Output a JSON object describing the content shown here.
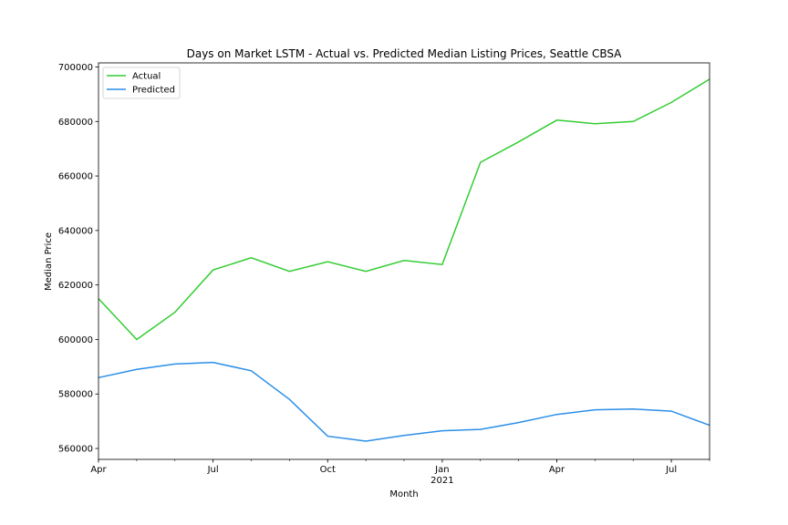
{
  "chart_data": {
    "type": "line",
    "title": "Days on Market LSTM - Actual vs. Predicted Median Listing Prices, Seattle CBSA",
    "xlabel": "Month",
    "ylabel": "Median Price",
    "x": [
      "2020-04",
      "2020-05",
      "2020-06",
      "2020-07",
      "2020-08",
      "2020-09",
      "2020-10",
      "2020-11",
      "2020-12",
      "2021-01",
      "2021-02",
      "2021-03",
      "2021-04",
      "2021-05",
      "2021-06",
      "2021-07",
      "2021-08"
    ],
    "x_ticks": [
      {
        "label": "Apr",
        "sub": "",
        "index": 0
      },
      {
        "label": "Jul",
        "sub": "",
        "index": 3
      },
      {
        "label": "Oct",
        "sub": "",
        "index": 6
      },
      {
        "label": "Jan",
        "sub": "2021",
        "index": 9
      },
      {
        "label": "Apr",
        "sub": "",
        "index": 12
      },
      {
        "label": "Jul",
        "sub": "",
        "index": 15
      }
    ],
    "ylim": [
      556000,
      701500
    ],
    "y_ticks": [
      560000,
      580000,
      600000,
      620000,
      640000,
      660000,
      680000,
      700000
    ],
    "series": [
      {
        "name": "Actual",
        "color": "#33cc33",
        "values": [
          615000,
          600000,
          610000,
          625500,
          630000,
          625000,
          628500,
          625000,
          629000,
          627500,
          665000,
          672500,
          680500,
          679200,
          680000,
          687000,
          695500
        ]
      },
      {
        "name": "Predicted",
        "color": "#2b8fe8",
        "values": [
          586000,
          589000,
          591000,
          591600,
          588500,
          578000,
          564500,
          562700,
          564800,
          566500,
          567000,
          569500,
          572500,
          574200,
          574500,
          573700,
          568500
        ]
      }
    ],
    "legend": "upper-left",
    "grid": false
  }
}
